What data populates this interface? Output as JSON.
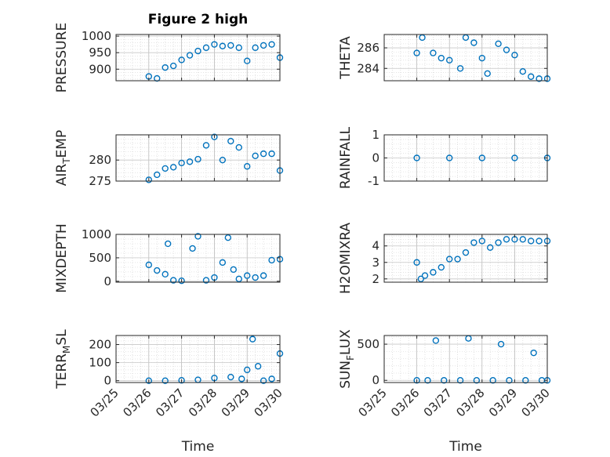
{
  "chart_data": [
    {
      "type": "scatter",
      "title": "Figure 2 high",
      "ylabel": "PRESSURE",
      "ylim": [
        865,
        1005
      ],
      "yticks": [
        900,
        950,
        1000
      ],
      "show_xticklabels": false,
      "x": [
        "03/26 00:00",
        "03/26 06:00",
        "03/26 12:00",
        "03/26 18:00",
        "03/27 00:00",
        "03/27 06:00",
        "03/27 12:00",
        "03/27 18:00",
        "03/28 00:00",
        "03/28 06:00",
        "03/28 12:00",
        "03/28 18:00",
        "03/29 00:00",
        "03/29 06:00",
        "03/29 12:00",
        "03/29 18:00",
        "03/30 00:00"
      ],
      "y": [
        878,
        872,
        905,
        910,
        928,
        942,
        955,
        965,
        975,
        970,
        972,
        965,
        925,
        965,
        972,
        975,
        935
      ]
    },
    {
      "type": "scatter",
      "title": "",
      "ylabel": "THETA",
      "ylim": [
        282.8,
        287.3
      ],
      "yticks": [
        284,
        286
      ],
      "show_xticklabels": false,
      "x": [
        "03/26 00:00",
        "03/26 04:00",
        "03/26 12:00",
        "03/26 18:00",
        "03/27 00:00",
        "03/27 08:00",
        "03/27 12:00",
        "03/27 18:00",
        "03/28 00:00",
        "03/28 04:00",
        "03/28 12:00",
        "03/28 18:00",
        "03/29 00:00",
        "03/29 06:00",
        "03/29 12:00",
        "03/29 18:00",
        "03/30 00:00"
      ],
      "y": [
        285.5,
        287.0,
        285.5,
        285.0,
        284.8,
        284.0,
        287.0,
        286.5,
        285.0,
        283.5,
        286.4,
        285.8,
        285.3,
        283.7,
        283.2,
        283.0,
        283.0
      ]
    },
    {
      "type": "scatter",
      "title": "",
      "ylabel": "AIR_TEMP",
      "ylabel_main": "AIR",
      "ylabel_sub": "T",
      "ylabel_rest": "EMP",
      "ylim": [
        275,
        286
      ],
      "yticks": [
        275,
        280
      ],
      "show_xticklabels": false,
      "x": [
        "03/26 00:00",
        "03/26 06:00",
        "03/26 12:00",
        "03/26 18:00",
        "03/27 00:00",
        "03/27 06:00",
        "03/27 12:00",
        "03/27 18:00",
        "03/28 00:00",
        "03/28 06:00",
        "03/28 12:00",
        "03/28 18:00",
        "03/29 00:00",
        "03/29 06:00",
        "03/29 12:00",
        "03/29 18:00",
        "03/30 00:00"
      ],
      "y": [
        275.3,
        276.5,
        278.0,
        278.3,
        279.3,
        279.6,
        280.2,
        283.5,
        285.5,
        280.0,
        284.5,
        283.0,
        278.5,
        281.0,
        281.5,
        281.5,
        277.5
      ]
    },
    {
      "type": "scatter",
      "title": "",
      "ylabel": "RAINFALL",
      "ylim": [
        -1,
        1
      ],
      "yticks": [
        -1,
        0,
        1
      ],
      "show_xticklabels": false,
      "x": [
        "03/26 00:00",
        "03/27 00:00",
        "03/28 00:00",
        "03/29 00:00",
        "03/30 00:00"
      ],
      "y": [
        0,
        0,
        0,
        0,
        0
      ]
    },
    {
      "type": "scatter",
      "title": "",
      "ylabel": "MIXDEPTH",
      "ylim": [
        -20,
        1000
      ],
      "yticks": [
        0,
        500,
        1000
      ],
      "show_xticklabels": false,
      "x": [
        "03/26 00:00",
        "03/26 06:00",
        "03/26 12:00",
        "03/26 14:00",
        "03/26 18:00",
        "03/27 00:00",
        "03/27 08:00",
        "03/27 12:00",
        "03/27 18:00",
        "03/28 00:00",
        "03/28 06:00",
        "03/28 10:00",
        "03/28 14:00",
        "03/28 18:00",
        "03/29 00:00",
        "03/29 06:00",
        "03/29 12:00",
        "03/29 18:00",
        "03/30 00:00"
      ],
      "y": [
        350,
        230,
        150,
        800,
        20,
        10,
        700,
        960,
        20,
        80,
        400,
        930,
        250,
        50,
        120,
        80,
        120,
        450,
        470
      ]
    },
    {
      "type": "scatter",
      "title": "",
      "ylabel": "H2OMIXRA",
      "ylim": [
        1.8,
        4.7
      ],
      "yticks": [
        2,
        3,
        4
      ],
      "show_xticklabels": false,
      "x": [
        "03/26 00:00",
        "03/26 03:00",
        "03/26 06:00",
        "03/26 12:00",
        "03/26 18:00",
        "03/27 00:00",
        "03/27 06:00",
        "03/27 12:00",
        "03/27 18:00",
        "03/28 00:00",
        "03/28 06:00",
        "03/28 12:00",
        "03/28 18:00",
        "03/29 00:00",
        "03/29 06:00",
        "03/29 12:00",
        "03/29 18:00",
        "03/30 00:00"
      ],
      "y": [
        3.0,
        2.0,
        2.2,
        2.4,
        2.7,
        3.2,
        3.2,
        3.6,
        4.2,
        4.3,
        3.9,
        4.2,
        4.4,
        4.4,
        4.4,
        4.3,
        4.3,
        4.3
      ]
    },
    {
      "type": "scatter",
      "title": "",
      "ylabel": "TERR_MSL",
      "ylabel_main": "TERR",
      "ylabel_sub": "M",
      "ylabel_rest": "SL",
      "ylim": [
        -10,
        250
      ],
      "yticks": [
        0,
        100,
        200
      ],
      "x": [
        "03/26 00:00",
        "03/26 12:00",
        "03/27 00:00",
        "03/27 12:00",
        "03/28 00:00",
        "03/28 12:00",
        "03/28 20:00",
        "03/29 00:00",
        "03/29 04:00",
        "03/29 08:00",
        "03/29 12:00",
        "03/29 18:00",
        "03/30 00:00"
      ],
      "y": [
        0,
        0,
        2,
        5,
        15,
        20,
        10,
        60,
        230,
        80,
        0,
        10,
        150
      ]
    },
    {
      "type": "scatter",
      "title": "",
      "ylabel": "SUN_FLUX",
      "ylabel_main": "SUN",
      "ylabel_sub": "F",
      "ylabel_rest": "LUX",
      "ylim": [
        -30,
        620
      ],
      "yticks": [
        0,
        500
      ],
      "x": [
        "03/26 00:00",
        "03/26 08:00",
        "03/26 14:00",
        "03/26 20:00",
        "03/27 08:00",
        "03/27 14:00",
        "03/27 20:00",
        "03/28 08:00",
        "03/28 14:00",
        "03/28 20:00",
        "03/29 08:00",
        "03/29 14:00",
        "03/29 20:00",
        "03/30 00:00"
      ],
      "y": [
        0,
        0,
        550,
        0,
        0,
        580,
        0,
        0,
        500,
        0,
        0,
        380,
        0,
        0
      ]
    }
  ],
  "x_axis": {
    "ticks": [
      "03/25",
      "03/26",
      "03/27",
      "03/28",
      "03/29",
      "03/30"
    ],
    "xlabel": "Time"
  },
  "marker_color": "#0072BD"
}
